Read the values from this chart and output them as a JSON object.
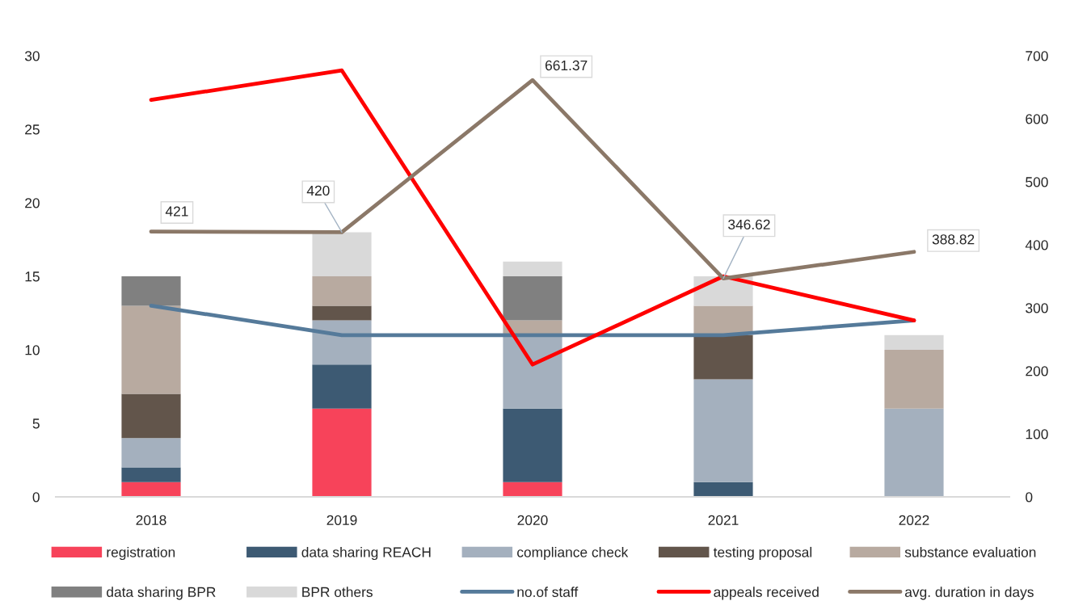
{
  "chart_data": {
    "type": "bar",
    "stacked": true,
    "categories": [
      "2018",
      "2019",
      "2020",
      "2021",
      "2022"
    ],
    "ylim": [
      0,
      30
    ],
    "yticks": [
      0,
      5,
      10,
      15,
      20,
      25,
      30
    ],
    "y2lim": [
      0,
      700
    ],
    "y2ticks": [
      0,
      100,
      200,
      300,
      400,
      500,
      600,
      700
    ],
    "legend": "bottom",
    "series": [
      {
        "name": "registration",
        "color": "#f7435a",
        "values": [
          1,
          6,
          1,
          0,
          0
        ]
      },
      {
        "name": "data sharing REACH",
        "color": "#3d5a73",
        "values": [
          1,
          3,
          5,
          1,
          0
        ]
      },
      {
        "name": "compliance check",
        "color": "#a4b0be",
        "values": [
          2,
          3,
          5,
          7,
          6
        ]
      },
      {
        "name": "testing proposal",
        "color": "#62554b",
        "values": [
          3,
          1,
          0,
          3,
          0
        ]
      },
      {
        "name": "substance evaluation",
        "color": "#b8aaa0",
        "values": [
          6,
          2,
          1,
          2,
          4
        ]
      },
      {
        "name": "data sharing BPR",
        "color": "#808080",
        "values": [
          2,
          0,
          3,
          0,
          0
        ]
      },
      {
        "name": "BPR others",
        "color": "#d9d9d9",
        "values": [
          0,
          3,
          1,
          2,
          1
        ]
      },
      {
        "name": "no.of staff",
        "type": "line",
        "color": "#557a9a",
        "values": [
          13,
          11,
          11,
          11,
          12
        ]
      },
      {
        "name": "appeals received",
        "type": "line",
        "color": "#ff0000",
        "values": [
          27,
          29,
          9,
          15,
          12
        ]
      },
      {
        "name": "avg. duration in days",
        "type": "line",
        "axis": "y2",
        "color": "#8b7868",
        "values": [
          421,
          420,
          661.37,
          346.62,
          388.82
        ],
        "value_labels": [
          "421",
          "420",
          "661.37",
          "346.62",
          "388.82"
        ]
      }
    ]
  }
}
